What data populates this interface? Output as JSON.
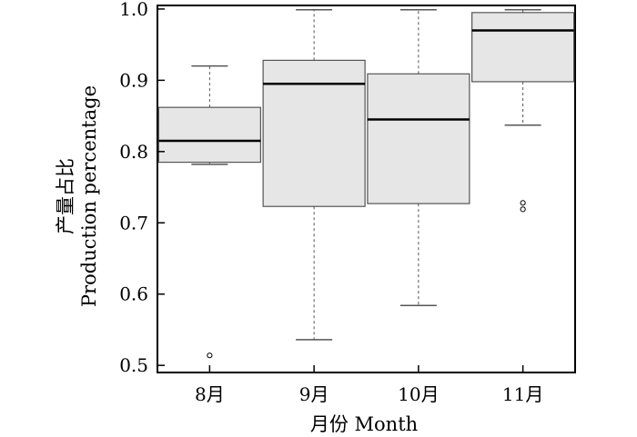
{
  "chart_data": {
    "type": "box",
    "xlabel": "月份 Month",
    "ylabel_lines": [
      "产量占比",
      "Production percentage"
    ],
    "ylim": [
      0.49,
      1.005
    ],
    "yticks": [
      0.5,
      0.6,
      0.7,
      0.8,
      0.9,
      1.0
    ],
    "ytick_labels": [
      "0.5",
      "0.6",
      "0.7",
      "0.8",
      "0.9",
      "1.0"
    ],
    "categories": [
      "8月",
      "9月",
      "10月",
      "11月"
    ],
    "boxes": [
      {
        "category": "8月",
        "whisker_low": 0.782,
        "q1": 0.785,
        "median": 0.815,
        "q3": 0.862,
        "whisker_high": 0.92,
        "outliers": [
          0.514
        ]
      },
      {
        "category": "9月",
        "whisker_low": 0.536,
        "q1": 0.723,
        "median": 0.895,
        "q3": 0.928,
        "whisker_high": 0.999,
        "outliers": []
      },
      {
        "category": "10月",
        "whisker_low": 0.584,
        "q1": 0.727,
        "median": 0.845,
        "q3": 0.909,
        "whisker_high": 0.999,
        "outliers": []
      },
      {
        "category": "11月",
        "whisker_low": 0.837,
        "q1": 0.898,
        "median": 0.97,
        "q3": 0.995,
        "whisker_high": 0.999,
        "outliers": [
          0.728,
          0.719
        ]
      }
    ],
    "grid": false,
    "colors": {
      "box_fill": "#e6e6e6",
      "stroke": "#000000",
      "box_stroke": "#555555",
      "whisker": "#555555"
    }
  }
}
